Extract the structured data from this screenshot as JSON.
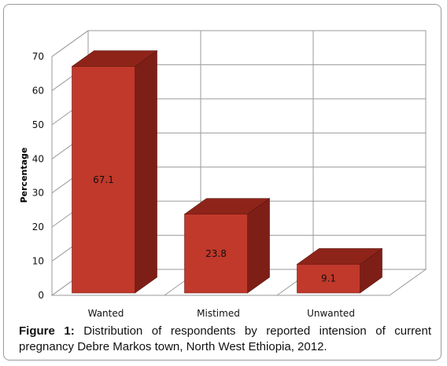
{
  "chart_data": {
    "type": "bar",
    "categories": [
      "Wanted",
      "Mistimed",
      "Unwanted"
    ],
    "values": [
      67.1,
      23.8,
      9.1
    ],
    "data_labels": [
      "67.1",
      "23.8",
      "9.1"
    ],
    "ylabel": "Percentage",
    "ylim": [
      0,
      70
    ],
    "yticks": [
      "0",
      "10",
      "20",
      "30",
      "40",
      "50",
      "60",
      "70"
    ],
    "grid": true,
    "three_d": true,
    "colors": {
      "front": "#c0392b",
      "side": "#7d1f17",
      "top": "#8e2419",
      "grid": "#9a9a9a"
    }
  },
  "caption": {
    "label": "Figure 1:",
    "text": "Distribution of respondents by reported intension of current pregnancy Debre Markos town, North West Ethiopia, 2012."
  }
}
